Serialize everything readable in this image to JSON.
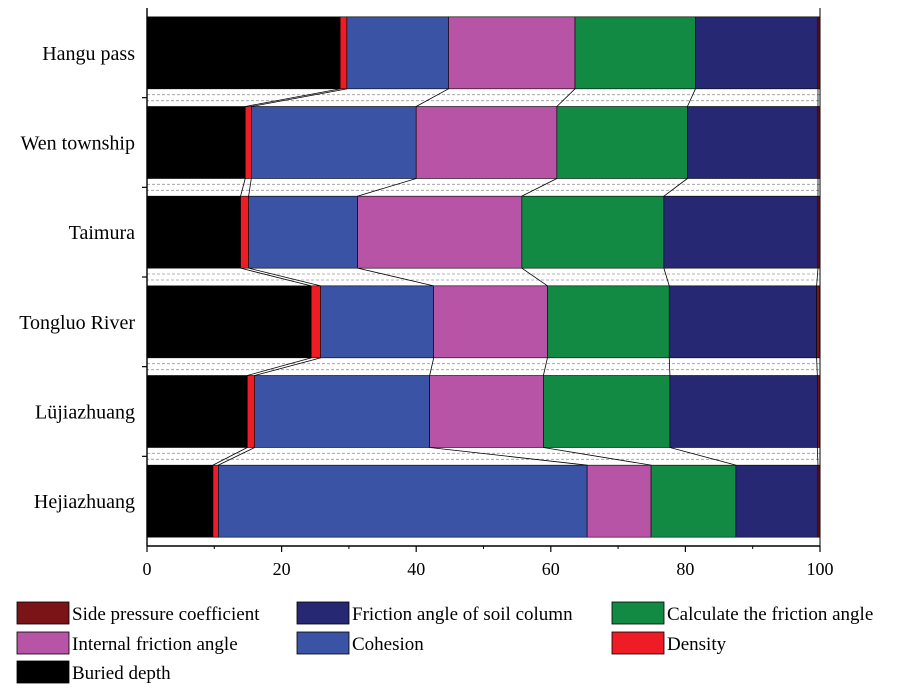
{
  "chart_data": {
    "type": "bar",
    "orientation": "horizontal",
    "stacked": true,
    "categories": [
      "Hangu pass",
      "Wen township",
      "Taimura",
      "Tongluo River",
      "Lüjiazhuang",
      "Hejiazhuang"
    ],
    "xlim": [
      0,
      100
    ],
    "xticks": [
      0,
      20,
      40,
      60,
      80,
      100
    ],
    "connector_lines": true,
    "series": [
      {
        "name": "Buried depth",
        "color": "#000000",
        "values": [
          28.7,
          14.6,
          13.9,
          24.4,
          14.9,
          9.8
        ]
      },
      {
        "name": "Density",
        "color": "#ee1c24",
        "values": [
          1.0,
          0.9,
          1.2,
          1.4,
          1.1,
          0.8
        ]
      },
      {
        "name": "Cohesion",
        "color": "#3a53a4",
        "values": [
          15.1,
          24.5,
          16.2,
          16.8,
          26.0,
          54.8
        ]
      },
      {
        "name": "Internal friction angle",
        "color": "#b854a6",
        "values": [
          18.8,
          20.9,
          24.4,
          16.9,
          16.9,
          9.5
        ]
      },
      {
        "name": "Calculate the friction angle",
        "color": "#138a43",
        "values": [
          17.9,
          19.4,
          21.1,
          18.1,
          18.8,
          12.6
        ]
      },
      {
        "name": "Friction angle of soil column",
        "color": "#262874",
        "values": [
          18.2,
          19.4,
          22.9,
          21.9,
          21.9,
          12.2
        ]
      },
      {
        "name": "Side pressure coefficient",
        "color": "#7b1416",
        "values": [
          0.3,
          0.3,
          0.3,
          0.5,
          0.4,
          0.3
        ]
      }
    ],
    "legend": {
      "placement": "bottom",
      "entries": [
        {
          "name": "Side pressure coefficient",
          "color": "#7b1416"
        },
        {
          "name": "Friction angle of soil column",
          "color": "#262874"
        },
        {
          "name": "Calculate the friction angle",
          "color": "#138a43"
        },
        {
          "name": "Internal friction angle",
          "color": "#b854a6"
        },
        {
          "name": "Cohesion",
          "color": "#3a53a4"
        },
        {
          "name": "Density",
          "color": "#ee1c24"
        },
        {
          "name": "Buried depth",
          "color": "#000000"
        }
      ]
    }
  }
}
